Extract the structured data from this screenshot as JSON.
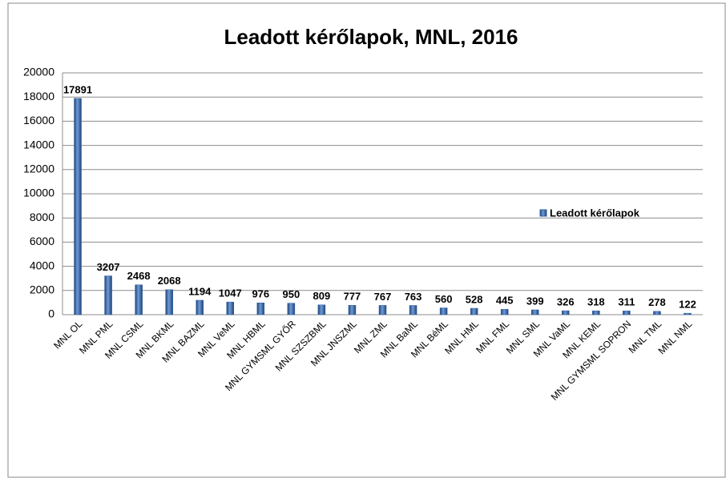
{
  "chart_data": {
    "type": "bar",
    "title": "Leadott kérőlapok, MNL, 2016",
    "categories": [
      "MNL OL",
      "MNL PML",
      "MNL CSML",
      "MNL BKML",
      "MNL BAZML",
      "MNL VeML",
      "MNL HBML",
      "MNL GYMSML GYŐR",
      "MNL SZSZBML",
      "MNL JNSZML",
      "MNL ZML",
      "MNL BaML",
      "MNL BéML",
      "MNL HML",
      "MNL FML",
      "MNL SML",
      "MNL VaML",
      "MNL KEML",
      "MNL GYMSML SOPRON",
      "MNL TML",
      "MNL NML"
    ],
    "series": [
      {
        "name": "Leadott kérőlapok",
        "color": "#2e5f9e",
        "values": [
          17891,
          3207,
          2468,
          2068,
          1194,
          1047,
          976,
          950,
          809,
          777,
          767,
          763,
          560,
          528,
          445,
          399,
          326,
          318,
          311,
          278,
          122
        ]
      }
    ],
    "ylim": [
      0,
      20000
    ],
    "yticks": [
      0,
      2000,
      4000,
      6000,
      8000,
      10000,
      12000,
      14000,
      16000,
      18000,
      20000
    ],
    "grid": true,
    "legend": "right"
  }
}
